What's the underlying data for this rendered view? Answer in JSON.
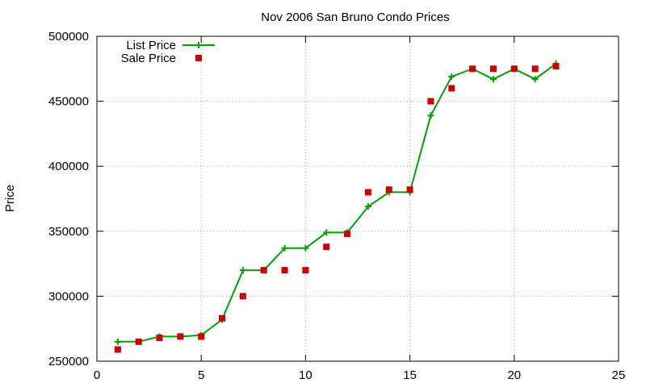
{
  "chart_data": {
    "type": "line",
    "title": "Nov 2006 San Bruno Condo Prices",
    "xlabel": "",
    "ylabel": "Price",
    "xlim": [
      0,
      25
    ],
    "ylim": [
      250000,
      500000
    ],
    "x_ticks": [
      0,
      5,
      10,
      15,
      20,
      25
    ],
    "y_ticks": [
      250000,
      300000,
      350000,
      400000,
      450000,
      500000
    ],
    "grid": true,
    "legend_position": "top-left",
    "x": [
      1,
      2,
      3,
      4,
      5,
      6,
      7,
      8,
      9,
      10,
      11,
      12,
      13,
      14,
      15,
      16,
      17,
      18,
      19,
      20,
      21,
      22
    ],
    "series": [
      {
        "name": "List Price",
        "style": "line with plus markers",
        "color": "#00a000",
        "values": [
          265000,
          265000,
          269000,
          269000,
          270000,
          282000,
          320000,
          320000,
          337000,
          337000,
          349000,
          349000,
          369000,
          380000,
          380000,
          439000,
          469000,
          475000,
          467000,
          475000,
          467000,
          479000
        ]
      },
      {
        "name": "Sale Price",
        "style": "square markers",
        "color": "#cc0000",
        "values": [
          259000,
          265000,
          268000,
          269000,
          269000,
          283000,
          300000,
          320000,
          320000,
          320000,
          338000,
          348000,
          380000,
          382000,
          382000,
          450000,
          460000,
          475000,
          475000,
          475000,
          475000,
          477000
        ]
      }
    ]
  }
}
